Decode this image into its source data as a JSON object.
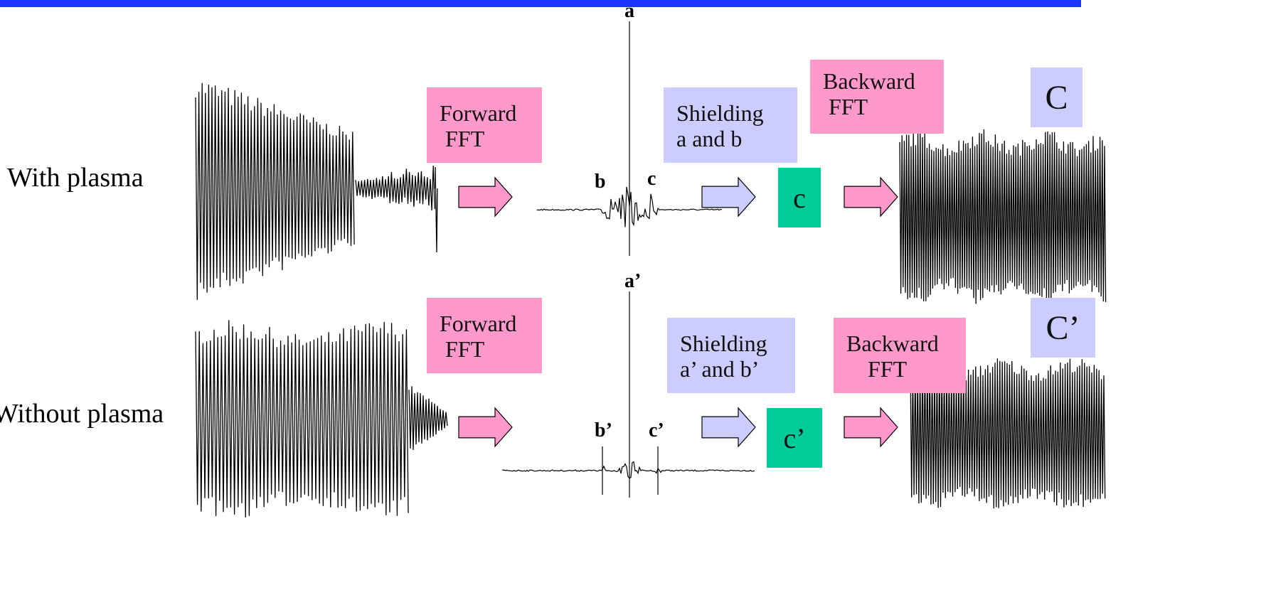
{
  "colors": {
    "forward_box": "#ff99cc",
    "backward_box": "#ff99cc",
    "shield_box": "#ccccff",
    "result_box": "#00cc99",
    "top_bar": "#1a33ff"
  },
  "rows": [
    {
      "label": "With plasma",
      "forward": [
        "Forward",
        " FFT"
      ],
      "shield": [
        "Shielding",
        "a and b"
      ],
      "backward": [
        "Backward",
        " FFT"
      ],
      "result_lower": "c",
      "result_upper": "C",
      "peaks": {
        "a": "a",
        "b": "b",
        "c": "c"
      }
    },
    {
      "label": "Without plasma",
      "forward": [
        "Forward",
        " FFT"
      ],
      "shield": [
        "Shielding",
        "a’ and b’"
      ],
      "backward": [
        "Backward",
        "FFT"
      ],
      "result_lower": "c’",
      "result_upper": "C’",
      "peaks": {
        "a": "a’",
        "b": "b’",
        "c": "c’"
      }
    }
  ]
}
